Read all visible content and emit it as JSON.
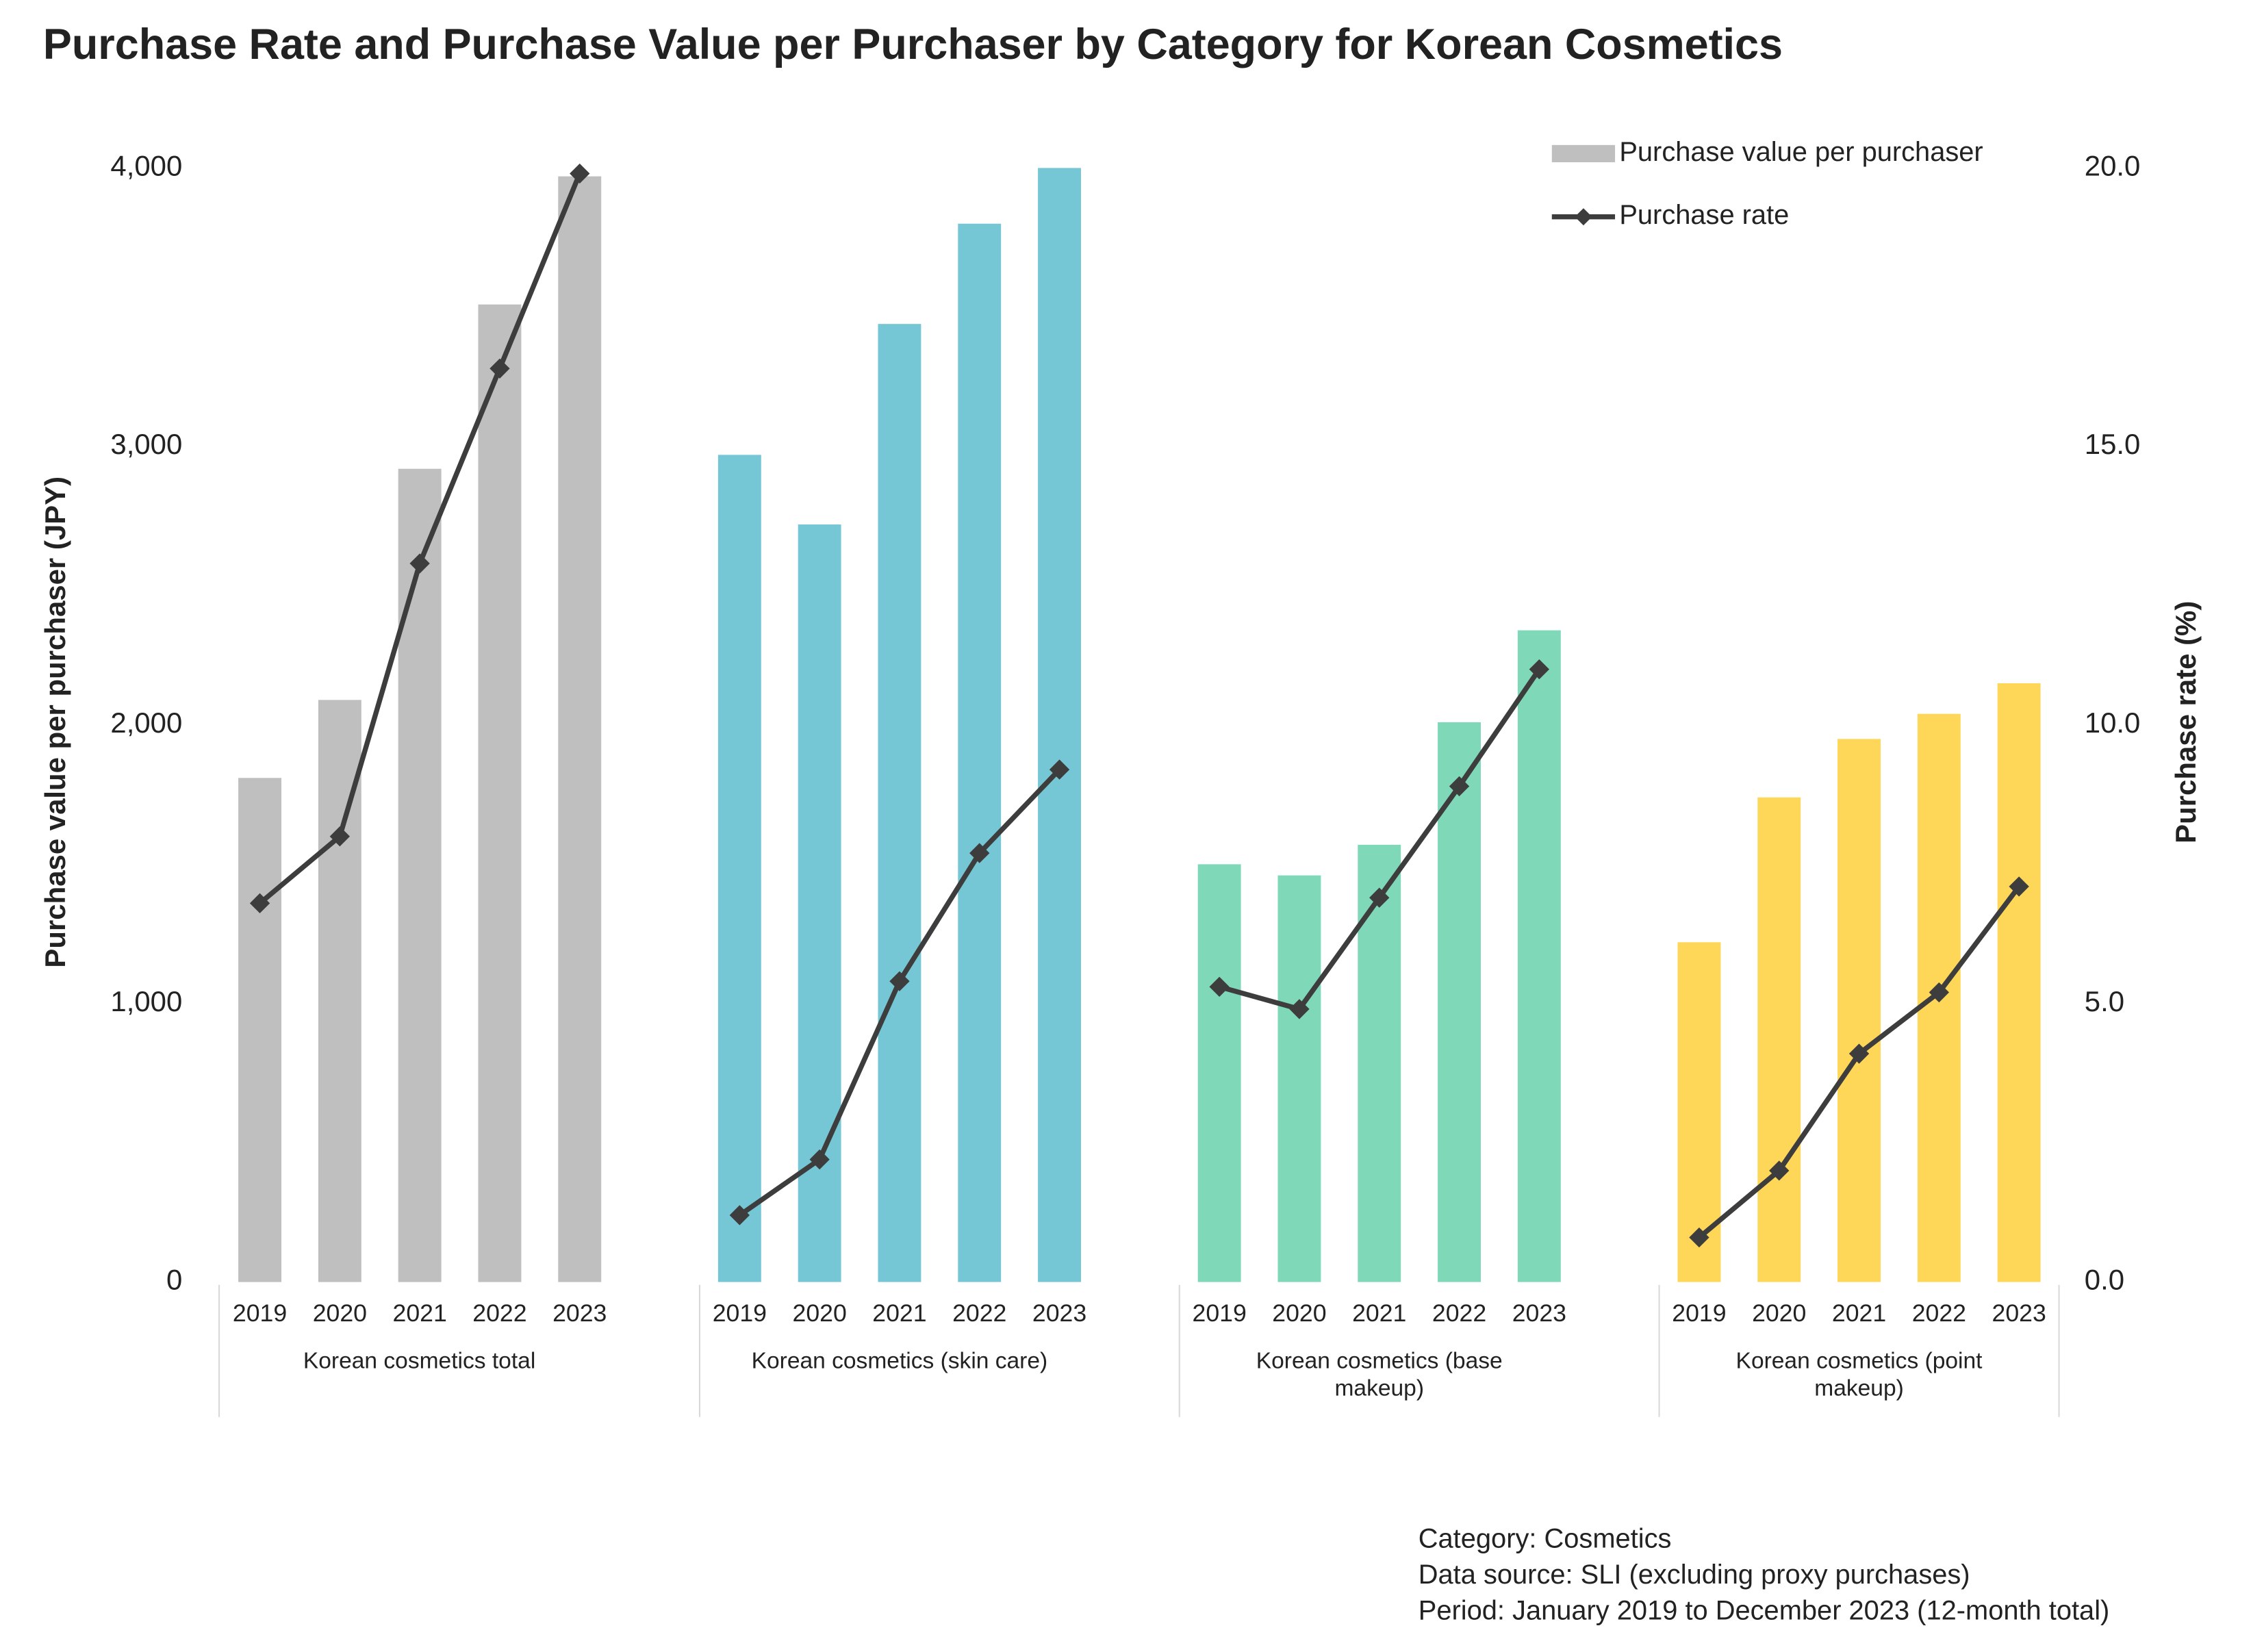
{
  "chart_data": {
    "type": "grouped-bar-line",
    "title": "Purchase Rate and Purchase Value per Purchaser by Category for Korean Cosmetics",
    "y_label": "Purchase value per purchaser (JPY)",
    "y2_label": "Purchase rate (%)",
    "legend": {
      "corner": "upper right",
      "bar_name": "Purchase value per purchaser",
      "bar_color": "#bfbfbf",
      "line_name": "Purchase rate",
      "line_color": "#3d3d3d"
    },
    "ylim": [
      0,
      4000
    ],
    "yticks": [
      0,
      {
        "value": 1000,
        "label": "1,000"
      },
      {
        "value": 2000,
        "label": "2,000"
      },
      {
        "value": 3000,
        "label": "3,000"
      },
      {
        "value": 4000,
        "label": "4,000"
      }
    ],
    "y2lim": [
      0,
      20
    ],
    "y2ticks": [
      {
        "value": 0,
        "label": "0.0"
      },
      {
        "value": 5,
        "label": "5.0"
      },
      {
        "value": 10,
        "label": "10.0"
      },
      {
        "value": 15,
        "label": "15.0"
      },
      {
        "value": 20,
        "label": "20.0"
      }
    ],
    "groups": [
      {
        "name": "Korean cosmetics total",
        "color": "#bfbfbf",
        "categories": [
          "2019",
          "2020",
          "2021",
          "2022",
          "2023"
        ],
        "values": [
          1810,
          2090,
          2920,
          3510,
          3970
        ],
        "rates": [
          6.8,
          8.0,
          12.9,
          16.4,
          19.9
        ]
      },
      {
        "name": "Korean cosmetics (skin care)",
        "color": "#76c7d6",
        "categories": [
          "2019",
          "2020",
          "2021",
          "2022",
          "2023"
        ],
        "values": [
          2970,
          2720,
          3440,
          3800,
          4000
        ],
        "rates": [
          1.2,
          2.2,
          5.4,
          7.7,
          9.2
        ]
      },
      {
        "name": "Korean cosmetics (base makeup)",
        "color": "#7fd8b8",
        "categories": [
          "2019",
          "2020",
          "2021",
          "2022",
          "2023"
        ],
        "values": [
          1500,
          1460,
          1570,
          2010,
          2340
        ],
        "rates": [
          5.3,
          4.9,
          6.9,
          8.9,
          11.0
        ]
      },
      {
        "name": "Korean cosmetics (point makeup)",
        "color": "#ffd758",
        "categories": [
          "2019",
          "2020",
          "2021",
          "2022",
          "2023"
        ],
        "values": [
          1220,
          1740,
          1950,
          2040,
          2150
        ],
        "rates": [
          0.8,
          2.0,
          4.1,
          5.2,
          7.1
        ]
      }
    ],
    "notes": [
      "Category: Cosmetics",
      "Data source: SLI (excluding proxy purchases)",
      "Period: January 2019 to December 2023 (12-month total)"
    ]
  }
}
